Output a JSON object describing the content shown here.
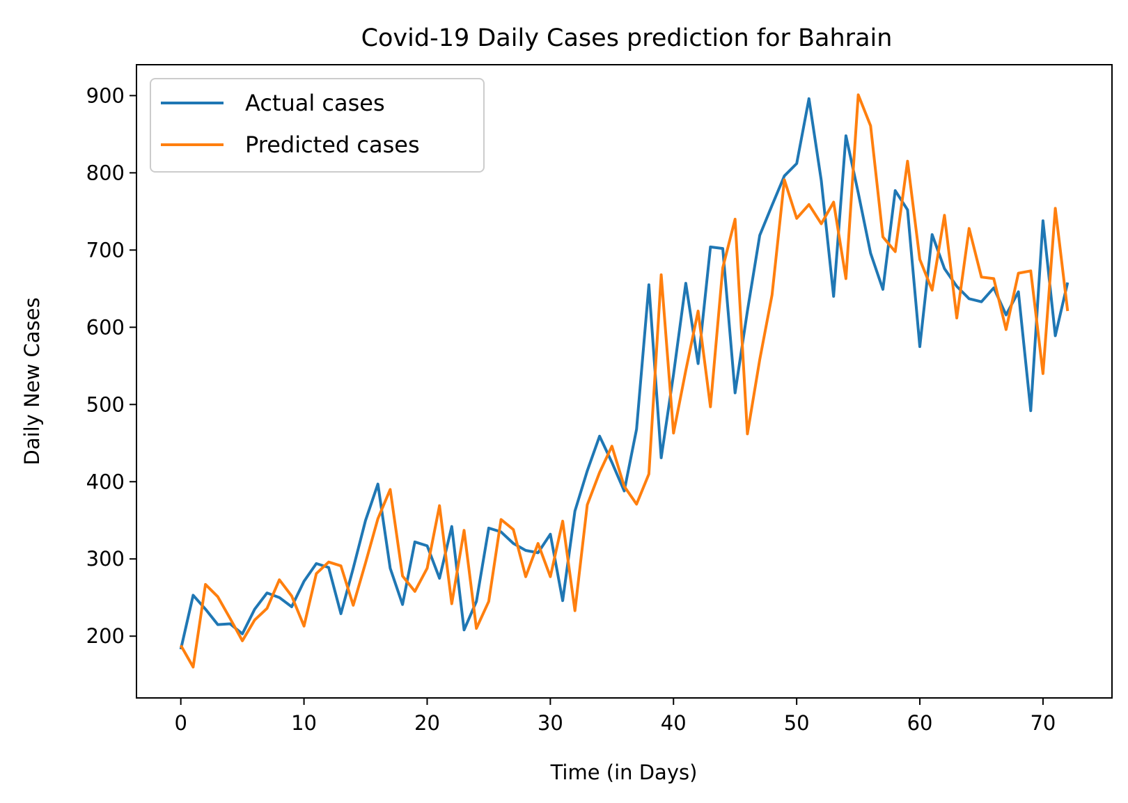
{
  "chart_data": {
    "type": "line",
    "title": "Covid-19 Daily Cases prediction for Bahrain",
    "xlabel": "Time (in Days)",
    "ylabel": "Daily New Cases",
    "xlim": [
      -3.6,
      75.6
    ],
    "ylim": [
      120,
      940
    ],
    "xticks": [
      0,
      10,
      20,
      30,
      40,
      50,
      60,
      70
    ],
    "yticks": [
      200,
      300,
      400,
      500,
      600,
      700,
      800,
      900
    ],
    "grid": false,
    "legend_position": "top-left",
    "x": [
      0,
      1,
      2,
      3,
      4,
      5,
      6,
      7,
      8,
      9,
      10,
      11,
      12,
      13,
      14,
      15,
      16,
      17,
      18,
      19,
      20,
      21,
      22,
      23,
      24,
      25,
      26,
      27,
      28,
      29,
      30,
      31,
      32,
      33,
      34,
      35,
      36,
      37,
      38,
      39,
      40,
      41,
      42,
      43,
      44,
      45,
      46,
      47,
      48,
      49,
      50,
      51,
      52,
      53,
      54,
      55,
      56,
      57,
      58,
      59,
      60,
      61,
      62,
      63,
      64,
      65,
      66,
      67,
      68,
      69,
      70,
      71,
      72
    ],
    "series": [
      {
        "name": "Actual cases",
        "color": "#1f77b4",
        "values": [
          183,
          253,
          235,
          215,
          216,
          203,
          235,
          256,
          250,
          238,
          271,
          294,
          289,
          229,
          288,
          350,
          397,
          288,
          241,
          322,
          317,
          275,
          342,
          208,
          245,
          340,
          335,
          320,
          311,
          308,
          332,
          246,
          362,
          414,
          459,
          425,
          388,
          468,
          655,
          431,
          539,
          657,
          553,
          704,
          702,
          515,
          621,
          719,
          758,
          796,
          812,
          896,
          790,
          640,
          848,
          774,
          696,
          649,
          777,
          752,
          575,
          720,
          676,
          653,
          637,
          633,
          651,
          616,
          646,
          492,
          738,
          589,
          658
        ]
      },
      {
        "name": "Predicted cases",
        "color": "#ff7f0e",
        "values": [
          188,
          160,
          267,
          251,
          223,
          194,
          221,
          236,
          273,
          252,
          213,
          281,
          296,
          291,
          240,
          295,
          352,
          390,
          278,
          258,
          288,
          369,
          242,
          337,
          210,
          245,
          351,
          338,
          277,
          320,
          277,
          349,
          233,
          370,
          412,
          446,
          394,
          371,
          410,
          668,
          463,
          544,
          621,
          497,
          677,
          740,
          462,
          558,
          642,
          791,
          741,
          759,
          734,
          762,
          663,
          901,
          861,
          717,
          698,
          815,
          688,
          648,
          745,
          612,
          728,
          665,
          663,
          597,
          670,
          673,
          540,
          754,
          621
        ]
      }
    ]
  }
}
